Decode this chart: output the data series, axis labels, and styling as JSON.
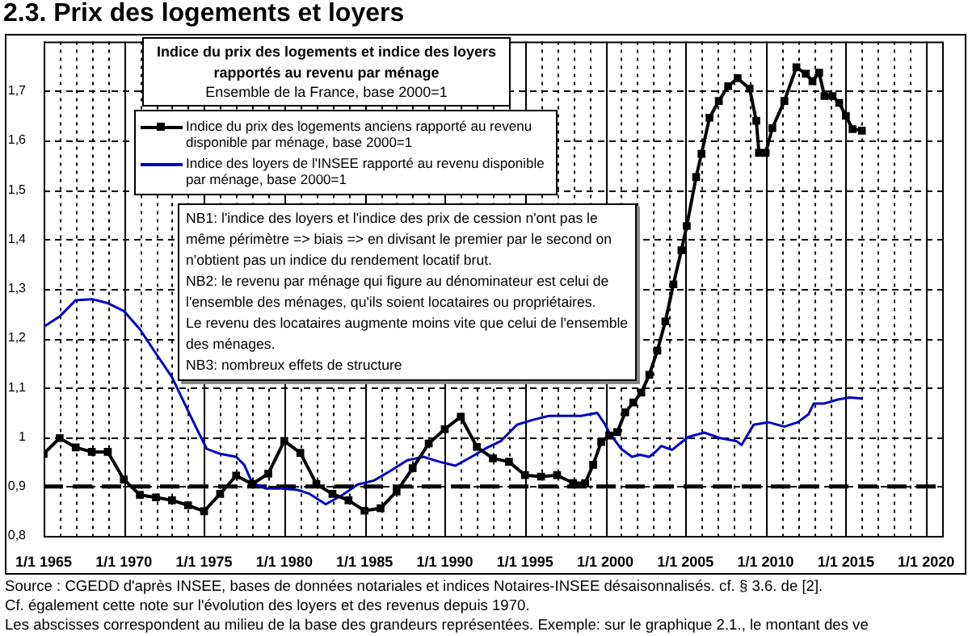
{
  "chart_data": {
    "type": "line",
    "title": "2.3. Prix des logements et loyers",
    "subtitle": "Indice du prix des logements et indice des loyers\nrapportés au revenu par ménage",
    "xlim": [
      "1965-01-01",
      "2021-01-01"
    ],
    "ylim": [
      0.8,
      1.8
    ],
    "xticks": [
      {
        "value": "1965-01-01",
        "label": "1/1 1965"
      },
      {
        "value": "1966-01-01",
        "label": null
      },
      {
        "value": "1967-01-01",
        "label": null
      },
      {
        "value": "1968-01-01",
        "label": null
      },
      {
        "value": "1969-01-01",
        "label": null
      },
      {
        "value": "1970-01-01",
        "label": "1/1 1970"
      },
      {
        "value": "1971-01-01",
        "label": null
      },
      {
        "value": "1972-01-01",
        "label": null
      },
      {
        "value": "1973-01-01",
        "label": null
      },
      {
        "value": "1974-01-01",
        "label": null
      },
      {
        "value": "1975-01-01",
        "label": "1/1 1975"
      },
      {
        "value": "1976-01-01",
        "label": null
      },
      {
        "value": "1977-01-01",
        "label": null
      },
      {
        "value": "1978-01-01",
        "label": null
      },
      {
        "value": "1979-01-01",
        "label": null
      },
      {
        "value": "1980-01-01",
        "label": "1/1 1980"
      },
      {
        "value": "1981-01-01",
        "label": null
      },
      {
        "value": "1982-01-01",
        "label": null
      },
      {
        "value": "1983-01-01",
        "label": null
      },
      {
        "value": "1984-01-01",
        "label": null
      },
      {
        "value": "1985-01-01",
        "label": "1/1 1985"
      },
      {
        "value": "1986-01-01",
        "label": null
      },
      {
        "value": "1987-01-01",
        "label": null
      },
      {
        "value": "1988-01-01",
        "label": null
      },
      {
        "value": "1989-01-01",
        "label": null
      },
      {
        "value": "1990-01-01",
        "label": "1/1 1990"
      },
      {
        "value": "1991-01-01",
        "label": null
      },
      {
        "value": "1992-01-01",
        "label": null
      },
      {
        "value": "1993-01-01",
        "label": null
      },
      {
        "value": "1994-01-01",
        "label": null
      },
      {
        "value": "1995-01-01",
        "label": "1/1 1995"
      },
      {
        "value": "1996-01-01",
        "label": null
      },
      {
        "value": "1997-01-01",
        "label": null
      },
      {
        "value": "1998-01-01",
        "label": null
      },
      {
        "value": "1999-01-01",
        "label": null
      },
      {
        "value": "2000-01-01",
        "label": "1/1 2000"
      },
      {
        "value": "2001-01-01",
        "label": null
      },
      {
        "value": "2002-01-01",
        "label": null
      },
      {
        "value": "2003-01-01",
        "label": null
      },
      {
        "value": "2004-01-01",
        "label": null
      },
      {
        "value": "2005-01-01",
        "label": "1/1 2005"
      },
      {
        "value": "2006-01-01",
        "label": null
      },
      {
        "value": "2007-01-01",
        "label": null
      },
      {
        "value": "2008-01-01",
        "label": null
      },
      {
        "value": "2009-01-01",
        "label": null
      },
      {
        "value": "2010-01-01",
        "label": "1/1 2010"
      },
      {
        "value": "2011-01-01",
        "label": null
      },
      {
        "value": "2012-01-01",
        "label": null
      },
      {
        "value": "2013-01-01",
        "label": null
      },
      {
        "value": "2014-01-01",
        "label": null
      },
      {
        "value": "2015-01-01",
        "label": "1/1 2015"
      },
      {
        "value": "2016-01-01",
        "label": null
      },
      {
        "value": "2017-01-01",
        "label": null
      },
      {
        "value": "2018-01-01",
        "label": null
      },
      {
        "value": "2019-01-01",
        "label": null
      },
      {
        "value": "2020-01-01",
        "label": "1/1 2020"
      }
    ],
    "yticks": [
      {
        "value": 0.8,
        "label": "0,8"
      },
      {
        "value": 0.9,
        "label": "0,9"
      },
      1,
      {
        "value": 1.1,
        "label": "1,1"
      },
      {
        "value": 1.2,
        "label": "1,2"
      },
      {
        "value": 1.3,
        "label": "1,3"
      },
      {
        "value": 1.4,
        "label": "1,4"
      },
      {
        "value": 1.5,
        "label": "1,5"
      },
      {
        "value": 1.6,
        "label": "1,6"
      },
      {
        "value": 1.7,
        "label": "1,7"
      }
    ],
    "grid": true,
    "legend": "top left",
    "series": [
      {
        "name": "Indice du prix des logements anciens rapporté au revenu disponible par ménage, base 2000=1",
        "color": "#000000",
        "marker": "square",
        "x": [
          "1965-01",
          "1966-01",
          "1967-01",
          "1968-01",
          "1969-01",
          "1970-01",
          "1971-01",
          "1972-01",
          "1973-01",
          "1974-01",
          "1975-01",
          "1976-01",
          "1977-01",
          "1978-01",
          "1979-01",
          "1980-01",
          "1981-01",
          "1982-01",
          "1983-01",
          "1984-01",
          "1985-01",
          "1986-01",
          "1987-01",
          "1988-01",
          "1989-01",
          "1990-01",
          "1991-01",
          "1992-01",
          "1993-01",
          "1994-01",
          "1995-01",
          "1996-01",
          "1997-01",
          "1998-01",
          "1998-10",
          "1999-04",
          "1999-10",
          "2000-04",
          "2000-10",
          "2001-04",
          "2001-10",
          "2002-04",
          "2002-10",
          "2003-04",
          "2003-10",
          "2004-04",
          "2004-10",
          "2005-02",
          "2005-09",
          "2006-01",
          "2006-07",
          "2007-02",
          "2007-09",
          "2008-04",
          "2009-01",
          "2009-06",
          "2009-08",
          "2010-01",
          "2010-06",
          "2011-03",
          "2011-12",
          "2012-07",
          "2012-12",
          "2013-05",
          "2013-09",
          "2014-03",
          "2014-08",
          "2015-01",
          "2015-06",
          "2016-01"
        ],
        "values": [
          0.966,
          0.998,
          0.979,
          0.97,
          0.97,
          0.914,
          0.883,
          0.878,
          0.872,
          0.862,
          0.85,
          0.885,
          0.922,
          0.905,
          0.926,
          0.992,
          0.968,
          0.905,
          0.885,
          0.872,
          0.851,
          0.856,
          0.89,
          0.937,
          0.987,
          1.016,
          1.041,
          0.98,
          0.957,
          0.95,
          0.923,
          0.92,
          0.923,
          0.907,
          0.907,
          0.944,
          0.99,
          1.003,
          1.01,
          1.05,
          1.07,
          1.09,
          1.126,
          1.175,
          1.234,
          1.309,
          1.378,
          1.427,
          1.526,
          1.573,
          1.646,
          1.68,
          1.71,
          1.726,
          1.705,
          1.64,
          1.575,
          1.575,
          1.625,
          1.68,
          1.748,
          1.735,
          1.72,
          1.737,
          1.69,
          1.69,
          1.676,
          1.65,
          1.623,
          1.62
        ]
      },
      {
        "name": "Indice des loyers de l'INSEE rapporté au revenu disponible par ménage, base 2000=1",
        "color": "#0000c0",
        "marker": "none",
        "x": [
          "1965-01",
          "1966-01",
          "1967-01",
          "1968-01",
          "1969-01",
          "1970-01",
          "1971-01",
          "1972-01",
          "1973-01",
          "1974-06",
          "1975-03",
          "1976-01",
          "1977-01",
          "1977-07",
          "1978-01",
          "1978-11",
          "1979-11",
          "1980-11",
          "1981-08",
          "1982-08",
          "1983-08",
          "1984-08",
          "1985-08",
          "1986-08",
          "1987-09",
          "1988-09",
          "1989-09",
          "1990-09",
          "1991-09",
          "1992-07",
          "1993-07",
          "1994-07",
          "1995-07",
          "1996-07",
          "1997-07",
          "1998-07",
          "1999-07",
          "2000-01",
          "2000-04",
          "2001-01",
          "2001-09",
          "2002-03",
          "2002-10",
          "2003-03",
          "2003-07",
          "2004-03",
          "2004-09",
          "2005-03",
          "2006-03",
          "2007-03",
          "2008-03",
          "2008-07",
          "2009-04",
          "2010-03",
          "2011-03",
          "2012-01",
          "2012-09",
          "2013-01",
          "2013-09",
          "2014-07",
          "2015-04",
          "2016-01"
        ],
        "values": [
          1.223,
          1.244,
          1.277,
          1.279,
          1.271,
          1.255,
          1.218,
          1.169,
          1.121,
          1.025,
          0.976,
          0.966,
          0.96,
          0.944,
          0.907,
          0.896,
          0.896,
          0.893,
          0.885,
          0.864,
          0.882,
          0.904,
          0.912,
          0.931,
          0.953,
          0.96,
          0.95,
          0.942,
          0.96,
          0.976,
          0.992,
          1.025,
          1.035,
          1.043,
          1.043,
          1.043,
          1.049,
          1.025,
          1.009,
          0.976,
          0.96,
          0.964,
          0.96,
          0.971,
          0.982,
          0.974,
          0.987,
          1.0,
          1.009,
          0.998,
          0.992,
          0.984,
          1.025,
          1.03,
          1.021,
          1.03,
          1.046,
          1.068,
          1.068,
          1.076,
          1.08,
          1.078
        ]
      }
    ],
    "ref_lines": [
      {
        "axis": "y",
        "value": 0.9,
        "color": "#000000",
        "line_style": "dashed"
      }
    ],
    "annotations": [
      "Ensemble de la France, base 2000=1",
      "NB1: l'indice des loyers et l'indice des prix de cession n'ont pas le même périmètre => biais => en divisant le premier par le second on n'obtient pas un indice du rendement locatif brut.\nNB2: le revenu par ménage qui figure au dénominateur est celui de l'ensemble des ménages, qu'ils soient locataires ou propriétaires.\nLe revenu des locataires augmente moins vite que celui de l'ensemble des ménages.\nNB3: nombreux effets de structure",
      "Source : CGEDD d'après INSEE, bases de données notariales et indices Notaires-INSEE désaisonnalisés. cf. § 3.6. de [2].",
      "Cf. également cette note sur l'évolution des loyers et des revenus depuis 1970.",
      "Les abscisses correspondent au milieu de la base des grandeurs représentées.  Exemple: sur le graphique 2.1., le montant des ve"
    ]
  }
}
